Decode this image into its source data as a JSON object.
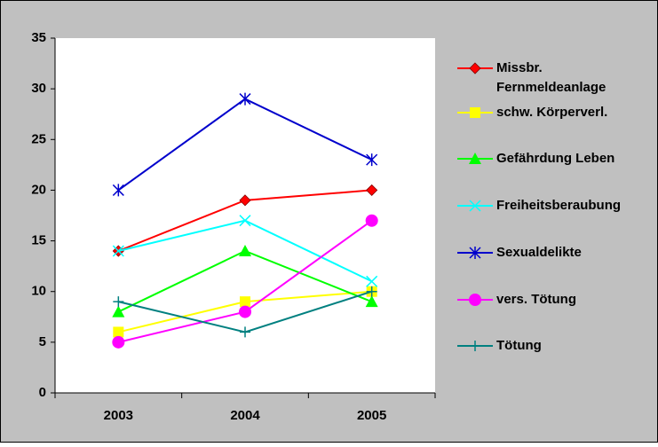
{
  "chart_data": {
    "type": "line",
    "categories": [
      "2003",
      "2004",
      "2005"
    ],
    "series": [
      {
        "name": "Missbr. Fernmeldeanlage",
        "color": "#ff0000",
        "marker": "diamond",
        "values": [
          14,
          19,
          20
        ]
      },
      {
        "name": "schw. Körperverl.",
        "color": "#ffff00",
        "marker": "square",
        "values": [
          6,
          9,
          10
        ]
      },
      {
        "name": "Gefährdung Leben",
        "color": "#00ff00",
        "marker": "triangle",
        "values": [
          8,
          14,
          9
        ]
      },
      {
        "name": "Freiheitsberaubung",
        "color": "#00ffff",
        "marker": "x",
        "values": [
          14,
          17,
          11
        ]
      },
      {
        "name": "Sexualdelikte",
        "color": "#0000cc",
        "marker": "asterisk",
        "values": [
          20,
          29,
          23
        ]
      },
      {
        "name": "vers. Tötung",
        "color": "#ff00ff",
        "marker": "circle",
        "values": [
          5,
          8,
          17
        ]
      },
      {
        "name": "Tötung",
        "color": "#008080",
        "marker": "plus",
        "values": [
          9,
          6,
          10
        ]
      }
    ],
    "ylim": [
      0,
      35
    ],
    "yticks": [
      0,
      5,
      10,
      15,
      20,
      25,
      30,
      35
    ],
    "grid": false,
    "legend": "right"
  }
}
